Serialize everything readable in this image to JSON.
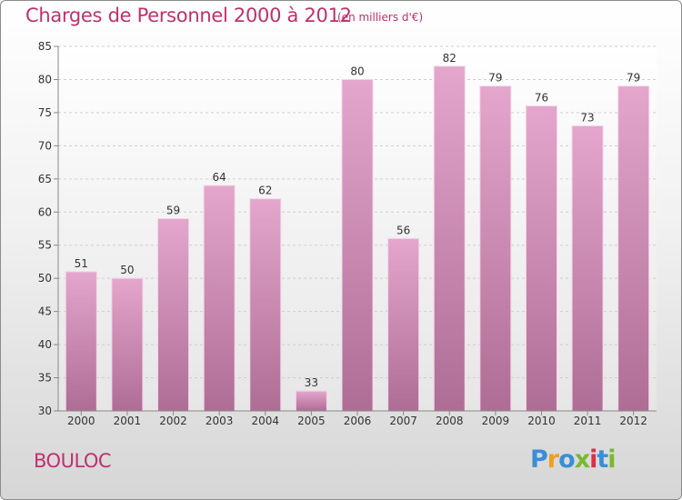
{
  "header": {
    "title": "Charges de Personnel 2000 à 2012",
    "subtitle": "(en milliers d'€)"
  },
  "footer": {
    "place": "BOULOC",
    "logo_letters": [
      "P",
      "r",
      "o",
      "x",
      "i",
      "t",
      "i"
    ],
    "logo_colors": [
      "#3a8fd4",
      "#f0a020",
      "#3a8fd4",
      "#7ab830",
      "#d8304a",
      "#3a8fd4",
      "#7ab830"
    ]
  },
  "chart_data": {
    "type": "bar",
    "title": "Charges de Personnel 2000 à 2012",
    "subtitle": "(en milliers d'€)",
    "categories": [
      "2000",
      "2001",
      "2002",
      "2003",
      "2004",
      "2005",
      "2006",
      "2007",
      "2008",
      "2009",
      "2010",
      "2011",
      "2012"
    ],
    "values": [
      51,
      50,
      59,
      64,
      62,
      33,
      80,
      56,
      82,
      79,
      76,
      73,
      79
    ],
    "ylim": [
      30,
      85
    ],
    "yticks": [
      30,
      35,
      40,
      45,
      50,
      55,
      60,
      65,
      70,
      75,
      80,
      85
    ],
    "grid": true,
    "data_labels": true,
    "bar_color": "#d98fb8",
    "text_color": "#c0306e"
  }
}
